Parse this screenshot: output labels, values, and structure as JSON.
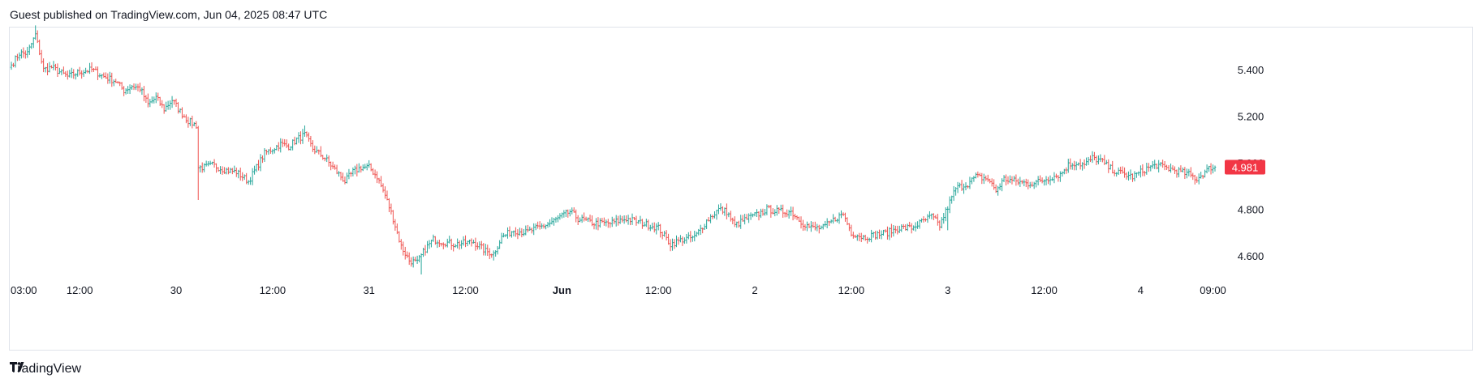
{
  "header": {
    "text": "Guest published on TradingView.com, Jun 04, 2025 08:47 UTC"
  },
  "brand": {
    "name": "TradingView",
    "icon": "tradingview-logo-icon"
  },
  "colors": {
    "up": "#26a69a",
    "down": "#ef5350",
    "price_badge": "#f23645",
    "axis_text": "#131722",
    "border": "#e0e3eb"
  },
  "chart_data": {
    "type": "ohlc",
    "y_ticks": [
      "5.400",
      "5.200",
      "5.000",
      "4.800",
      "4.600"
    ],
    "y_tick_values": [
      5.4,
      5.2,
      5.0,
      4.8,
      4.6
    ],
    "ylim": [
      4.49,
      5.59
    ],
    "x_ticks": [
      {
        "label": "03:00",
        "bold": false
      },
      {
        "label": "12:00",
        "bold": false
      },
      {
        "label": "30",
        "bold": false
      },
      {
        "label": "12:00",
        "bold": false
      },
      {
        "label": "31",
        "bold": false
      },
      {
        "label": "12:00",
        "bold": false
      },
      {
        "label": "Jun",
        "bold": true
      },
      {
        "label": "12:00",
        "bold": false
      },
      {
        "label": "2",
        "bold": false
      },
      {
        "label": "12:00",
        "bold": false
      },
      {
        "label": "3",
        "bold": false
      },
      {
        "label": "12:00",
        "bold": false
      },
      {
        "label": "4",
        "bold": false
      },
      {
        "label": "09:00",
        "bold": false
      }
    ],
    "x_tick_bar_index": [
      4,
      34,
      82,
      130,
      178,
      226,
      274,
      322,
      370,
      418,
      466,
      514,
      562,
      598
    ],
    "last_price": "4.981",
    "last_price_value": 4.981,
    "anchors": [
      [
        0,
        5.42
      ],
      [
        4,
        5.47
      ],
      [
        8,
        5.47
      ],
      [
        12,
        5.55
      ],
      [
        16,
        5.4
      ],
      [
        20,
        5.41
      ],
      [
        24,
        5.39
      ],
      [
        28,
        5.37
      ],
      [
        34,
        5.39
      ],
      [
        40,
        5.4
      ],
      [
        46,
        5.37
      ],
      [
        52,
        5.35
      ],
      [
        56,
        5.31
      ],
      [
        60,
        5.33
      ],
      [
        64,
        5.32
      ],
      [
        68,
        5.25
      ],
      [
        72,
        5.28
      ],
      [
        76,
        5.23
      ],
      [
        80,
        5.27
      ],
      [
        84,
        5.22
      ],
      [
        88,
        5.18
      ],
      [
        92,
        5.16
      ],
      [
        93,
        4.98
      ],
      [
        96,
        4.98
      ],
      [
        100,
        4.99
      ],
      [
        106,
        4.97
      ],
      [
        112,
        4.96
      ],
      [
        118,
        4.92
      ],
      [
        122,
        4.98
      ],
      [
        126,
        5.04
      ],
      [
        130,
        5.06
      ],
      [
        134,
        5.08
      ],
      [
        138,
        5.07
      ],
      [
        142,
        5.1
      ],
      [
        146,
        5.12
      ],
      [
        150,
        5.06
      ],
      [
        156,
        5.02
      ],
      [
        162,
        4.96
      ],
      [
        166,
        4.92
      ],
      [
        170,
        4.96
      ],
      [
        174,
        4.98
      ],
      [
        178,
        4.98
      ],
      [
        182,
        4.94
      ],
      [
        186,
        4.86
      ],
      [
        190,
        4.76
      ],
      [
        194,
        4.64
      ],
      [
        198,
        4.58
      ],
      [
        202,
        4.57
      ],
      [
        206,
        4.63
      ],
      [
        210,
        4.67
      ],
      [
        220,
        4.65
      ],
      [
        230,
        4.66
      ],
      [
        236,
        4.62
      ],
      [
        240,
        4.61
      ],
      [
        244,
        4.68
      ],
      [
        250,
        4.71
      ],
      [
        256,
        4.7
      ],
      [
        262,
        4.72
      ],
      [
        268,
        4.74
      ],
      [
        274,
        4.77
      ],
      [
        278,
        4.79
      ],
      [
        282,
        4.76
      ],
      [
        290,
        4.74
      ],
      [
        298,
        4.74
      ],
      [
        306,
        4.76
      ],
      [
        314,
        4.74
      ],
      [
        322,
        4.72
      ],
      [
        328,
        4.65
      ],
      [
        334,
        4.67
      ],
      [
        340,
        4.68
      ],
      [
        346,
        4.75
      ],
      [
        352,
        4.8
      ],
      [
        356,
        4.79
      ],
      [
        360,
        4.73
      ],
      [
        366,
        4.76
      ],
      [
        372,
        4.78
      ],
      [
        376,
        4.8
      ],
      [
        382,
        4.79
      ],
      [
        388,
        4.79
      ],
      [
        394,
        4.74
      ],
      [
        398,
        4.72
      ],
      [
        404,
        4.72
      ],
      [
        410,
        4.76
      ],
      [
        414,
        4.78
      ],
      [
        418,
        4.7
      ],
      [
        424,
        4.68
      ],
      [
        430,
        4.69
      ],
      [
        436,
        4.7
      ],
      [
        442,
        4.72
      ],
      [
        448,
        4.72
      ],
      [
        454,
        4.75
      ],
      [
        458,
        4.77
      ],
      [
        462,
        4.73
      ],
      [
        466,
        4.81
      ],
      [
        470,
        4.89
      ],
      [
        476,
        4.91
      ],
      [
        480,
        4.94
      ],
      [
        486,
        4.93
      ],
      [
        490,
        4.88
      ],
      [
        494,
        4.93
      ],
      [
        500,
        4.92
      ],
      [
        506,
        4.91
      ],
      [
        512,
        4.92
      ],
      [
        518,
        4.94
      ],
      [
        522,
        4.95
      ],
      [
        526,
        4.99
      ],
      [
        530,
        5.0
      ],
      [
        534,
        4.99
      ],
      [
        538,
        5.02
      ],
      [
        542,
        5.01
      ],
      [
        546,
        4.98
      ],
      [
        550,
        4.96
      ],
      [
        554,
        4.95
      ],
      [
        558,
        4.94
      ],
      [
        562,
        4.96
      ],
      [
        566,
        4.98
      ],
      [
        570,
        4.99
      ],
      [
        574,
        4.98
      ],
      [
        578,
        4.97
      ],
      [
        582,
        4.96
      ],
      [
        586,
        4.95
      ],
      [
        590,
        4.93
      ],
      [
        594,
        4.96
      ],
      [
        597,
        4.981
      ]
    ],
    "spikes": [
      {
        "i": 12,
        "high": 5.59
      },
      {
        "i": 93,
        "low": 4.84
      },
      {
        "i": 146,
        "high": 5.16
      },
      {
        "i": 204,
        "low": 4.52
      },
      {
        "i": 240,
        "low": 4.58
      },
      {
        "i": 328,
        "low": 4.62
      },
      {
        "i": 466,
        "low": 4.71
      }
    ]
  }
}
